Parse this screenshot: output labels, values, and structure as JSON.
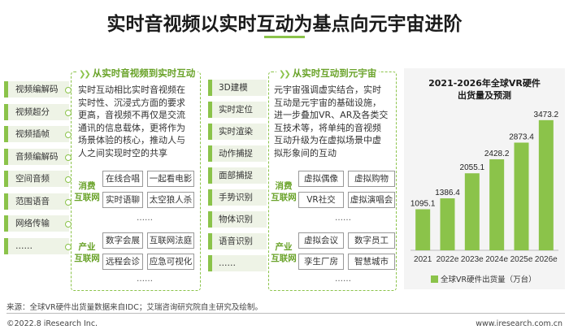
{
  "title": "实时音视频以实时互动为基点向元宇宙进阶",
  "left_tech": [
    "视频编解码",
    "视频超分",
    "视频插帧",
    "音频编解码",
    "空间音频",
    "范围语音",
    "网络传输",
    "……"
  ],
  "panel1": {
    "heading": "从实时音视频到实时互动",
    "lines": [
      "实时互动相比实时音视频在",
      "实时性、沉浸式方面的要求",
      "更高，音视频不再仅是交流",
      "通讯的信息载体，更将作为",
      "场景体验的核心，推动人与",
      "人之间实现时空的共享"
    ],
    "consumer_label": [
      "消费",
      "互联网"
    ],
    "consumer_apps": [
      "在线合唱",
      "一起看电影",
      "实时语聊",
      "太空狼人杀"
    ],
    "consumer_more": "……",
    "industry_label": [
      "产业",
      "互联网"
    ],
    "industry_apps": [
      "数字会展",
      "互联网法庭",
      "远程会诊",
      "应急可视化"
    ],
    "industry_more": "……"
  },
  "mid_tech": [
    "3D建模",
    "实时定位",
    "实时渲染",
    "动作捕捉",
    "面部捕捉",
    "手势识别",
    "物体识别",
    "语音识别",
    "……"
  ],
  "panel2": {
    "heading": "从实时互动到元宇宙",
    "lines": [
      "元宇宙强调虚实结合，实时",
      "互动是元宇宙的基础设施，",
      "进一步叠加VR、AR及各类交",
      "互技术等，将单纯的音视频",
      "互动升级为在虚拟场景中虚",
      "拟形象间的互动"
    ],
    "consumer_label": [
      "消费",
      "互联网"
    ],
    "consumer_apps": [
      "虚拟偶像",
      "虚拟购物",
      "VR社交",
      "虚拟演唱会"
    ],
    "consumer_more": "……",
    "industry_label": [
      "产业",
      "互联网"
    ],
    "industry_apps": [
      "虚拟会议",
      "数字员工",
      "孪生厂房",
      "智慧城市"
    ],
    "industry_more": "……"
  },
  "chart_data": {
    "type": "bar",
    "title": [
      "2021-2026年全球VR硬件",
      "出货量及预测"
    ],
    "categories": [
      "2021",
      "2022e",
      "2023e",
      "2024e",
      "2025e",
      "2026e"
    ],
    "series": [
      {
        "name": "全球VR硬件出货量（万台）",
        "values": [
          1095.1,
          1386.4,
          2055.1,
          2428.2,
          2873.4,
          3473.2
        ]
      }
    ],
    "value_labels": [
      "1095.1",
      "1386.4",
      "2055.1",
      "2428.2",
      "2873.4",
      "3473.2"
    ],
    "ylim": [
      0,
      3600
    ],
    "color": "#8bc34a",
    "legend_position": "bottom"
  },
  "footer": {
    "source": "来源：全球VR硬件出货量数据来自IDC；艾瑞咨询研究院自主研究及绘制。",
    "copyright": "©2022.8 iResearch Inc.",
    "site": "www.iresearch.com.cn"
  }
}
